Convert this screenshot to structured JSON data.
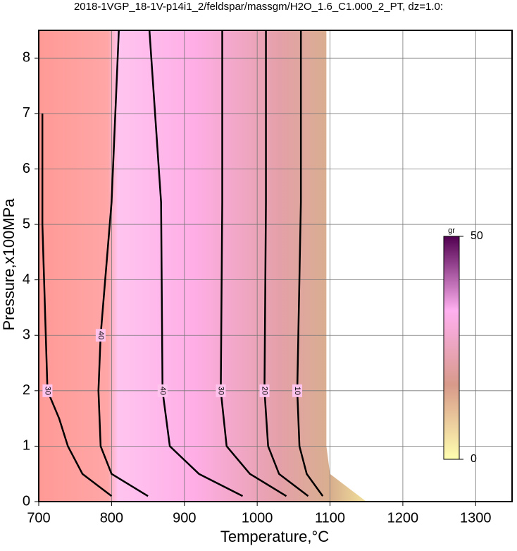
{
  "chart_data": {
    "type": "contour",
    "title": "2018-1VGP_18-1V-p14i1_2/feldspar/massgm/H2O_1.6_C1.000_2_PT, dz=1.0:",
    "x_label": "Temperature,°C",
    "y_label": "Pressure,x100MPa",
    "xlim": [
      700,
      1350
    ],
    "ylim": [
      0,
      8.5
    ],
    "xticks": [
      700,
      800,
      900,
      1000,
      1100,
      1200,
      1300
    ],
    "yticks": [
      0,
      1,
      2,
      3,
      4,
      5,
      6,
      7,
      8
    ],
    "grid": true,
    "line_color": "#000000",
    "contours": [
      {
        "level": 30,
        "temperature": [
          800,
          760,
          740,
          728,
          712,
          705,
          705
        ],
        "pressure": [
          0.1,
          0.5,
          1,
          1.5,
          2,
          5,
          7
        ]
      },
      {
        "level": 40,
        "temperature": [
          850,
          800,
          785,
          782,
          785,
          800,
          810
        ],
        "pressure": [
          0.1,
          0.5,
          1,
          2,
          3,
          5.4,
          8.5
        ]
      },
      {
        "level": 40,
        "temperature": [
          980,
          920,
          880,
          870,
          868,
          852
        ],
        "pressure": [
          0.1,
          0.5,
          1,
          2,
          5.4,
          8.5
        ]
      },
      {
        "level": 30,
        "temperature": [
          1040,
          990,
          958,
          950,
          952,
          952
        ],
        "pressure": [
          0.1,
          0.5,
          1,
          2,
          5.4,
          8.5
        ]
      },
      {
        "level": 20,
        "temperature": [
          1070,
          1030,
          1015,
          1010,
          1012,
          1012
        ],
        "pressure": [
          0.1,
          0.5,
          1,
          2,
          5.4,
          8.5
        ]
      },
      {
        "level": 10,
        "temperature": [
          1090,
          1068,
          1058,
          1055,
          1060,
          1060
        ],
        "pressure": [
          0.1,
          0.5,
          1,
          2,
          5.4,
          8.5
        ]
      }
    ],
    "colorbar": {
      "label": "gr",
      "lim": [
        0,
        50
      ],
      "ticks": [
        0,
        50
      ],
      "colors": [
        "#ffffb0",
        "#d89a8a",
        "#ffb0f0",
        "#500050"
      ]
    }
  }
}
